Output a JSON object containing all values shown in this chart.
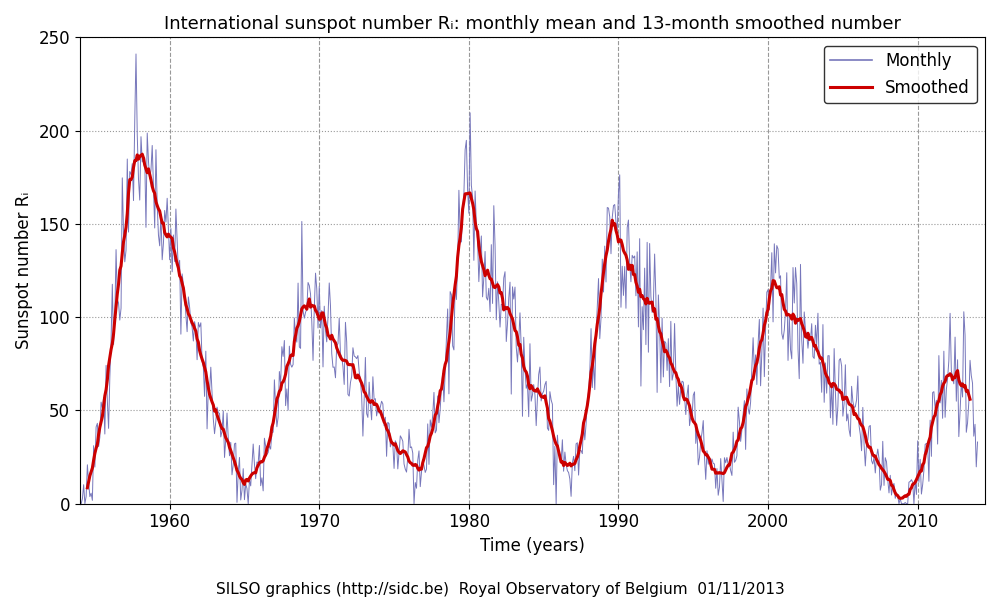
{
  "title": "International sunspot number Rᵢ: monthly mean and 13-month smoothed number",
  "xlabel": "Time (years)",
  "ylabel": "Sunspot number Rᵢ",
  "ylim": [
    0,
    250
  ],
  "xlim_start": 1954.0,
  "xlim_end": 2014.5,
  "xticks": [
    1960,
    1970,
    1980,
    1990,
    2000,
    2010
  ],
  "yticks": [
    0,
    50,
    100,
    150,
    200,
    250
  ],
  "monthly_color": "#7777bb",
  "smoothed_color": "#cc0000",
  "monthly_lw": 0.7,
  "smoothed_lw": 2.2,
  "grid_color": "#999999",
  "grid_dotted_ls": ":",
  "grid_dashed_ls": "--",
  "bg_color": "#ffffff",
  "legend_labels": [
    "Monthly",
    "Smoothed"
  ],
  "footnote": "SILSO graphics (http://sidc.be)  Royal Observatory of Belgium  01/11/2013",
  "title_fontsize": 13,
  "label_fontsize": 12,
  "tick_fontsize": 12,
  "footnote_fontsize": 11,
  "start_year": 1954.0,
  "month_step": 0.083333
}
